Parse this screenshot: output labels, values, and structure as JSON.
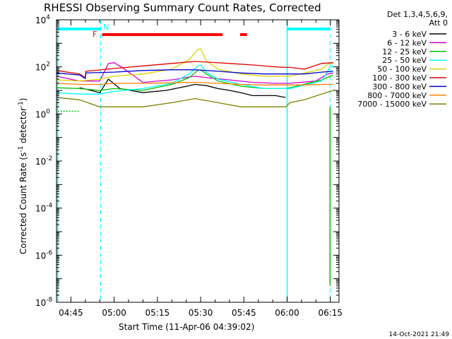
{
  "chart_data": {
    "type": "line",
    "title": "RHESSI Observing Summary Count Rates, Corrected",
    "xlabel": "Start Time (11-Apr-06 04:39:02)",
    "ylabel": "Corrected Count Rate (s⁻¹ detector⁻¹)",
    "ylabel_main": "Corrected Count Rate (s",
    "ylabel_sup1": "-1",
    "ylabel_mid": " detector",
    "ylabel_sup2": "-1",
    "ylabel_end": ")",
    "y_scale": "log",
    "ylim": [
      1e-08,
      10000.0
    ],
    "xlim_minutes": [
      40,
      138
    ],
    "x_ticks": [
      {
        "min": 45,
        "label": "04:45"
      },
      {
        "min": 60,
        "label": "05:00"
      },
      {
        "min": 75,
        "label": "05:15"
      },
      {
        "min": 90,
        "label": "05:30"
      },
      {
        "min": 105,
        "label": "05:45"
      },
      {
        "min": 120,
        "label": "06:00"
      },
      {
        "min": 135,
        "label": "06:15"
      }
    ],
    "y_ticks": [
      {
        "exp": 4,
        "base": "10",
        "sup": "4"
      },
      {
        "exp": 2,
        "base": "10",
        "sup": "2"
      },
      {
        "exp": 0,
        "base": "10",
        "sup": "0"
      },
      {
        "exp": -2,
        "base": "10",
        "sup": "-2"
      },
      {
        "exp": -4,
        "base": "10",
        "sup": "-4"
      },
      {
        "exp": -6,
        "base": "10",
        "sup": "-6"
      },
      {
        "exp": -8,
        "base": "10",
        "sup": "-8"
      }
    ],
    "legend_header": [
      "Det 1,3,4,5,6,9,",
      "Att 0"
    ],
    "series": [
      {
        "name": "3 - 6 keV",
        "color": "#000000",
        "points": [
          [
            48,
            13
          ],
          [
            52,
            10
          ],
          [
            55,
            8
          ],
          [
            58,
            30
          ],
          [
            62,
            12
          ],
          [
            70,
            8
          ],
          [
            78,
            10
          ],
          [
            84,
            14
          ],
          [
            88,
            18
          ],
          [
            92,
            16
          ],
          [
            96,
            12
          ],
          [
            100,
            10
          ],
          [
            104,
            8
          ],
          [
            108,
            6
          ],
          [
            112,
            6
          ],
          [
            116,
            6
          ],
          [
            119.5,
            5
          ]
        ]
      },
      {
        "name": "6 - 12 keV",
        "color": "#d000d0",
        "points": [
          [
            40,
            40
          ],
          [
            48,
            25
          ],
          [
            55,
            25
          ],
          [
            58,
            140
          ],
          [
            60,
            150
          ],
          [
            63,
            90
          ],
          [
            70,
            22
          ],
          [
            80,
            28
          ],
          [
            88,
            40
          ],
          [
            92,
            35
          ],
          [
            100,
            28
          ],
          [
            108,
            22
          ],
          [
            116,
            20
          ],
          [
            119.5,
            20
          ],
          [
            121,
            20
          ],
          [
            130,
            25
          ],
          [
            134,
            50
          ],
          [
            136,
            55
          ]
        ]
      },
      {
        "name": "12 - 25 keV",
        "color": "#00c000",
        "points": [
          [
            40,
            13
          ],
          [
            48,
            12
          ],
          [
            55,
            10
          ],
          [
            60,
            12
          ],
          [
            70,
            10
          ],
          [
            80,
            18
          ],
          [
            86,
            35
          ],
          [
            89,
            70
          ],
          [
            90,
            75
          ],
          [
            92,
            50
          ],
          [
            96,
            25
          ],
          [
            104,
            15
          ],
          [
            112,
            12
          ],
          [
            119.5,
            12
          ],
          [
            121,
            13
          ],
          [
            132,
            28
          ],
          [
            135,
            40
          ],
          [
            136,
            45
          ]
        ]
      },
      {
        "name": "25 - 50 keV",
        "color": "#00ffff",
        "points": [
          [
            40,
            8
          ],
          [
            48,
            7
          ],
          [
            55,
            7
          ],
          [
            60,
            9
          ],
          [
            70,
            12
          ],
          [
            80,
            20
          ],
          [
            86,
            50
          ],
          [
            89,
            110
          ],
          [
            90,
            120
          ],
          [
            92,
            60
          ],
          [
            96,
            30
          ],
          [
            104,
            18
          ],
          [
            112,
            12
          ],
          [
            119.5,
            12
          ],
          [
            121,
            12
          ],
          [
            132,
            25
          ],
          [
            135,
            100
          ],
          [
            136,
            110
          ]
        ]
      },
      {
        "name": "50 - 100 keV",
        "color": "#e0d000",
        "points": [
          [
            40,
            28
          ],
          [
            48,
            25
          ],
          [
            55,
            30
          ],
          [
            60,
            40
          ],
          [
            70,
            50
          ],
          [
            80,
            80
          ],
          [
            86,
            200
          ],
          [
            89,
            550
          ],
          [
            90,
            580
          ],
          [
            92,
            180
          ],
          [
            96,
            80
          ],
          [
            104,
            50
          ],
          [
            112,
            40
          ],
          [
            119.5,
            40
          ],
          [
            121,
            40
          ],
          [
            132,
            80
          ],
          [
            135,
            150
          ],
          [
            136,
            140
          ]
        ]
      },
      {
        "name": "100 - 300 keV",
        "color": "#e00000",
        "points": [
          [
            40,
            70
          ],
          [
            48,
            50
          ],
          [
            50,
            35
          ],
          [
            50.2,
            65
          ],
          [
            60,
            85
          ],
          [
            70,
            110
          ],
          [
            80,
            140
          ],
          [
            88,
            170
          ],
          [
            92,
            160
          ],
          [
            100,
            140
          ],
          [
            108,
            120
          ],
          [
            116,
            100
          ],
          [
            119.5,
            95
          ],
          [
            121,
            95
          ],
          [
            126,
            80
          ],
          [
            132,
            140
          ],
          [
            136,
            150
          ]
        ]
      },
      {
        "name": "300 - 800 keV",
        "color": "#0000d0",
        "points": [
          [
            40,
            55
          ],
          [
            48,
            45
          ],
          [
            50,
            32
          ],
          [
            50.2,
            55
          ],
          [
            60,
            60
          ],
          [
            70,
            70
          ],
          [
            80,
            75
          ],
          [
            88,
            75
          ],
          [
            96,
            65
          ],
          [
            104,
            55
          ],
          [
            112,
            50
          ],
          [
            119.5,
            50
          ],
          [
            121,
            50
          ],
          [
            126,
            50
          ],
          [
            132,
            60
          ],
          [
            136,
            65
          ]
        ]
      },
      {
        "name": "800 - 7000 keV",
        "color": "#ff8000",
        "points": [
          [
            40,
            20
          ],
          [
            48,
            18
          ],
          [
            55,
            18
          ],
          [
            60,
            20
          ],
          [
            70,
            20
          ],
          [
            80,
            21
          ],
          [
            88,
            22
          ],
          [
            96,
            20
          ],
          [
            104,
            18
          ],
          [
            112,
            17
          ],
          [
            119.5,
            17
          ],
          [
            121,
            17
          ],
          [
            126,
            17
          ],
          [
            132,
            18
          ],
          [
            136,
            18
          ]
        ]
      },
      {
        "name": "7000 - 15000 keV",
        "color": "#808000",
        "points": [
          [
            40,
            5
          ],
          [
            48,
            4
          ],
          [
            55,
            2
          ],
          [
            60,
            2
          ],
          [
            70,
            2
          ],
          [
            80,
            3
          ],
          [
            88,
            4.5
          ],
          [
            96,
            3
          ],
          [
            104,
            2
          ],
          [
            112,
            2
          ],
          [
            119.5,
            2
          ],
          [
            121,
            3
          ],
          [
            126,
            4
          ],
          [
            132,
            7
          ],
          [
            136,
            10
          ]
        ]
      }
    ],
    "annotations": {
      "flag_F": "F",
      "flag_N": "N"
    },
    "colors": {
      "flare_flag": "#ff0000",
      "night_flag": "#00ffff",
      "cyan_boundary": "#00ffff",
      "green_low": "#00c000"
    }
  },
  "footer": {
    "date": "14-Oct-2021 21:49"
  }
}
